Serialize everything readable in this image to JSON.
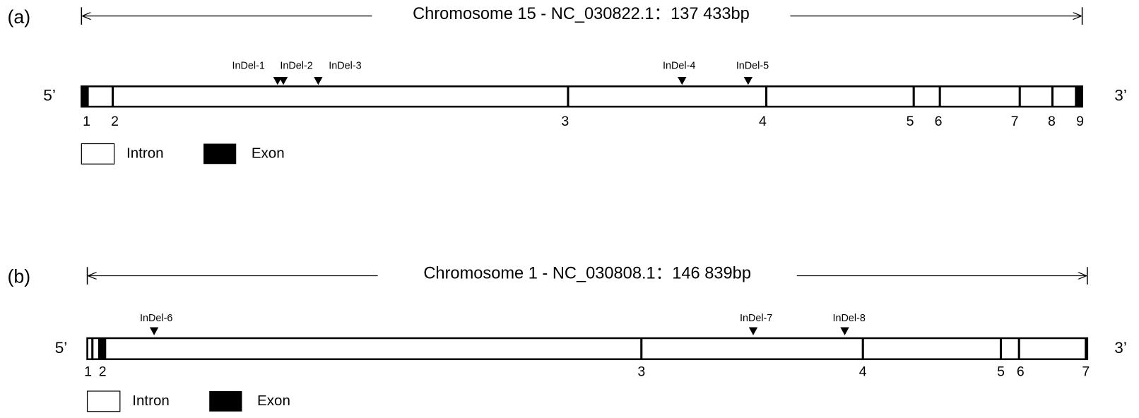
{
  "panels": [
    {
      "label": "(a)",
      "title": "Chromosome 15 - NC_030822.1：137 433bp",
      "five_prime": "5’",
      "three_prime": "3’",
      "exons": [
        "1",
        "2",
        "3",
        "4",
        "5",
        "6",
        "7",
        "8",
        "9"
      ],
      "indels": [
        "InDel-1",
        "InDel-2",
        "InDel-3",
        "InDel-4",
        "InDel-5"
      ],
      "legend": {
        "intron": "Intron",
        "exon": "Exon"
      }
    },
    {
      "label": "(b)",
      "title": "Chromosome 1 - NC_030808.1：146 839bp",
      "five_prime": "5’",
      "three_prime": "3’",
      "exons": [
        "1",
        "2",
        "3",
        "4",
        "5",
        "6",
        "7"
      ],
      "indels": [
        "InDel-6",
        "InDel-7",
        "InDel-8"
      ],
      "legend": {
        "intron": "Intron",
        "exon": "Exon"
      }
    }
  ]
}
